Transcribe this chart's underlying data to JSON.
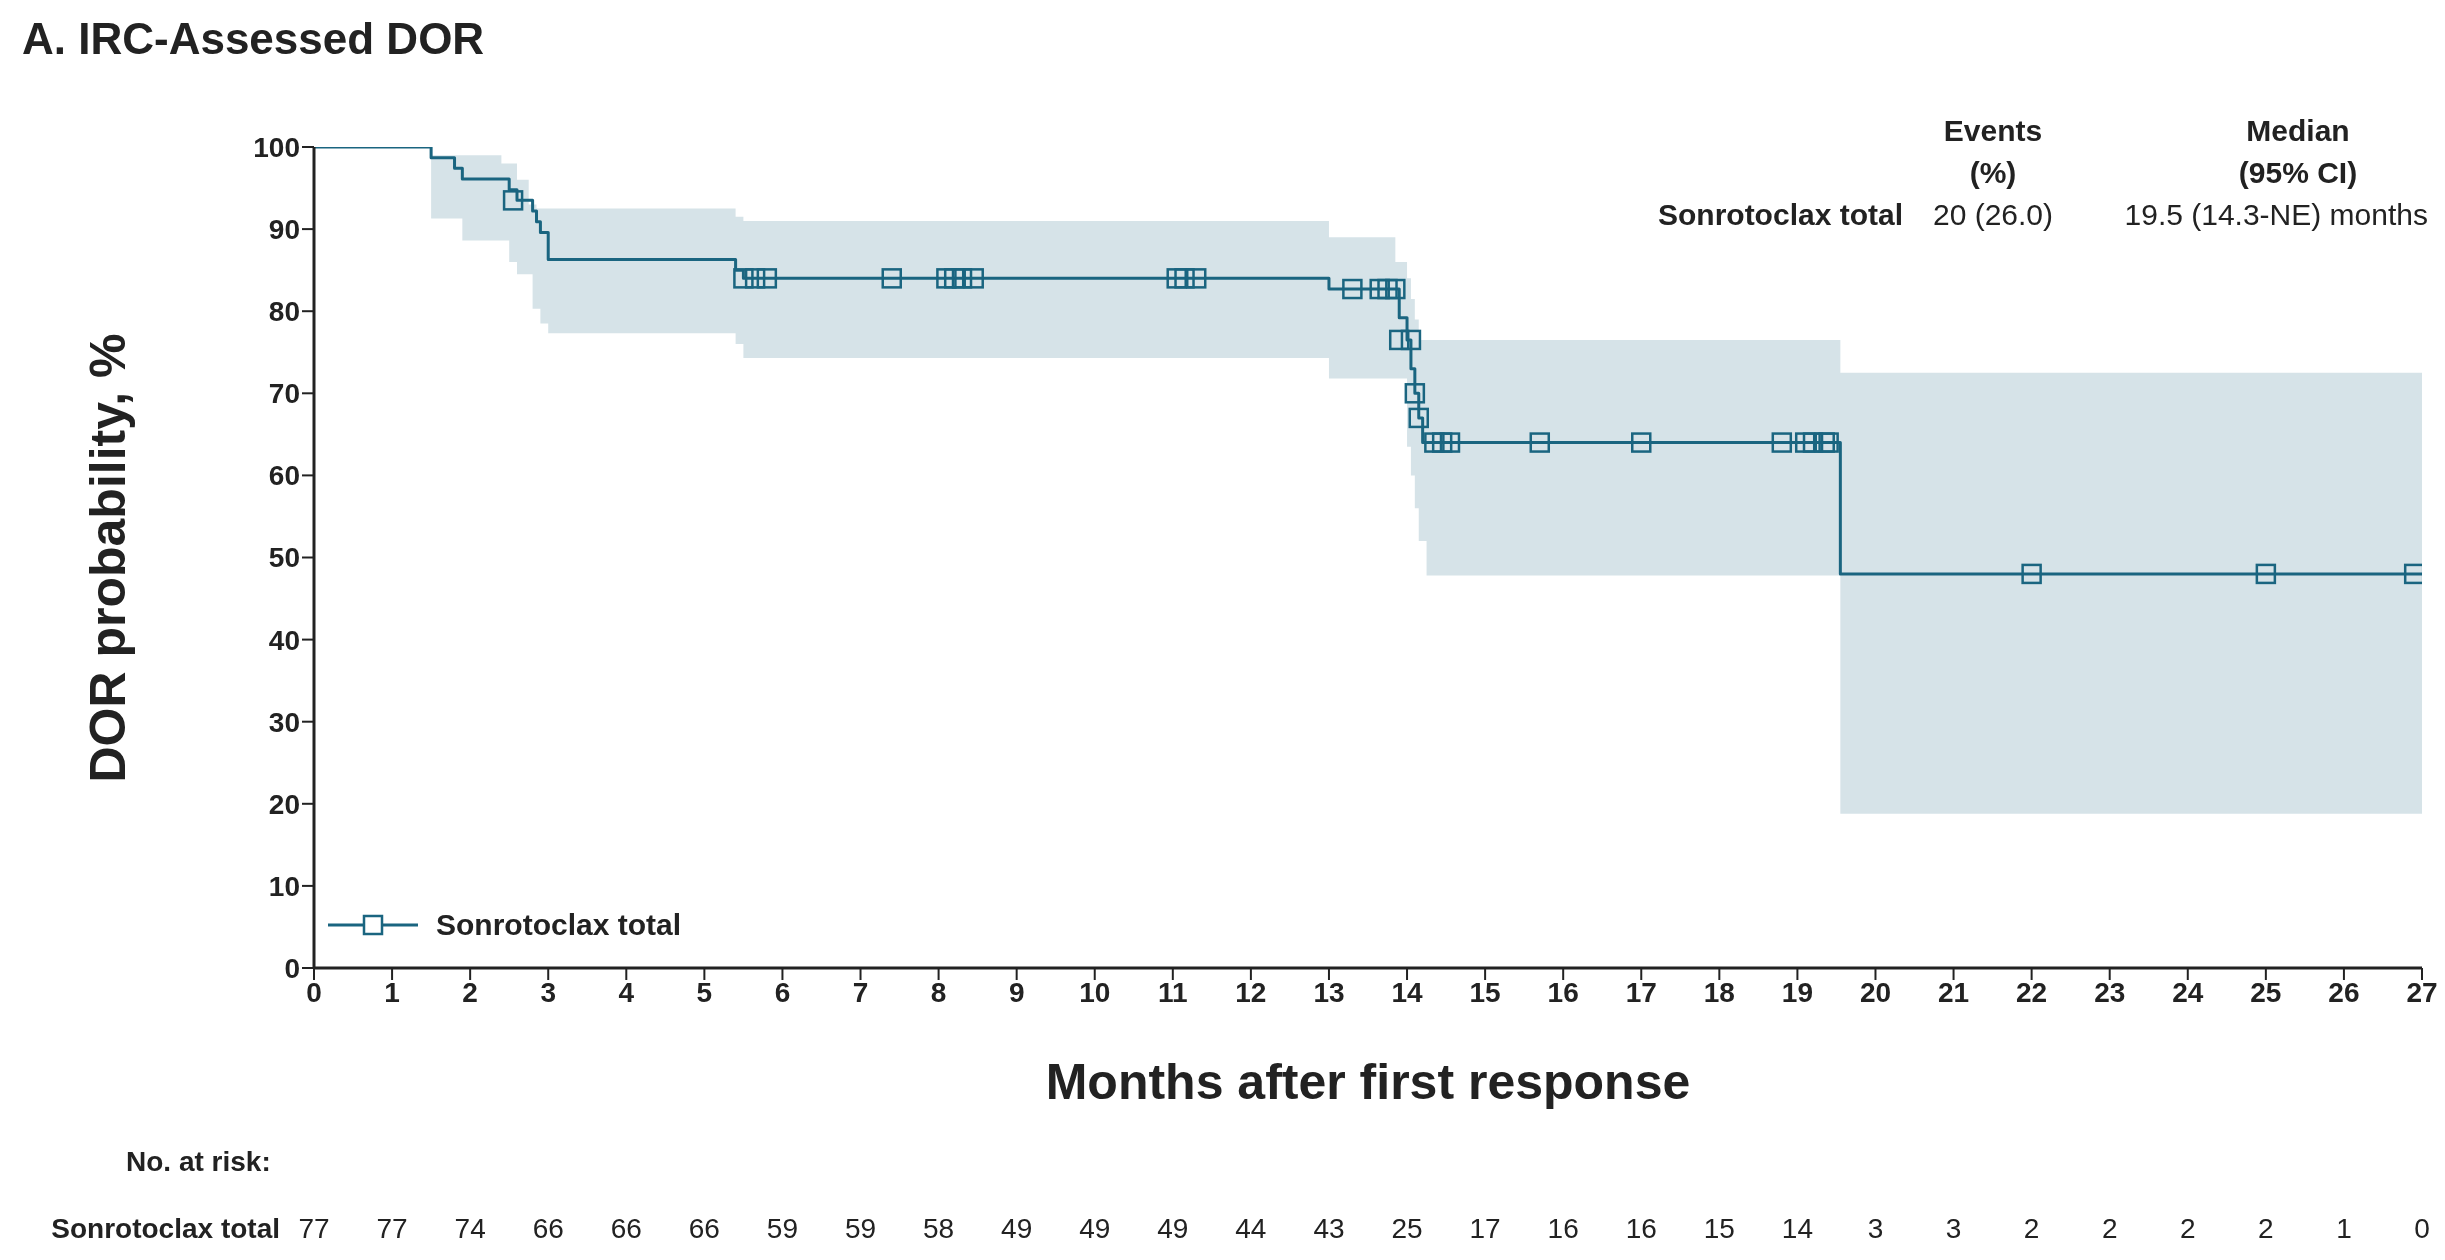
{
  "chart_data": {
    "type": "step",
    "title": "A. IRC-Assessed DOR",
    "xlabel": "Months after first response",
    "ylabel": "DOR probability, %",
    "xlim": [
      0,
      27
    ],
    "xticks": [
      0,
      1,
      2,
      3,
      4,
      5,
      6,
      7,
      8,
      9,
      10,
      11,
      12,
      13,
      14,
      15,
      16,
      17,
      18,
      19,
      20,
      21,
      22,
      23,
      24,
      25,
      26,
      27
    ],
    "ylim": [
      0,
      100
    ],
    "yticks": [
      0,
      10,
      20,
      30,
      40,
      50,
      60,
      70,
      80,
      90,
      100
    ],
    "grid": false,
    "legend": "bottom left",
    "series": [
      {
        "name": "Sonrotoclax total",
        "color": "#1a6580",
        "x": [
          0,
          1.5,
          1.8,
          1.9,
          2.4,
          2.5,
          2.6,
          2.75,
          2.8,
          2.85,
          2.9,
          3.0,
          5.4,
          5.5,
          13.0,
          13.85,
          13.9,
          14.0,
          14.05,
          14.1,
          14.15,
          14.2,
          14.25,
          19.55,
          27
        ],
        "values": [
          100,
          98.7,
          97.4,
          96.1,
          96.1,
          94.8,
          93.5,
          93.5,
          92.2,
          90.9,
          89.6,
          86.3,
          85,
          84,
          82.7,
          82.7,
          79.2,
          76.5,
          73,
          70,
          67,
          64,
          64,
          48,
          48
        ],
        "lower": [
          null,
          91.3,
          91.3,
          88.6,
          88.6,
          86,
          84.5,
          84.5,
          80.3,
          80.3,
          78.5,
          77.3,
          76,
          74.3,
          71.8,
          71.8,
          71.8,
          63.5,
          60,
          56,
          52,
          52,
          47.8,
          18.8,
          18.8
        ],
        "upper": [
          null,
          99,
          99,
          99,
          98,
          98,
          96,
          93,
          93,
          92.5,
          92.5,
          92.5,
          91.5,
          91,
          89,
          86,
          86,
          84,
          81.5,
          79,
          76.5,
          76.5,
          76.5,
          72.5,
          72.5
        ]
      },
      {
        "type": "scatter",
        "color": "#1a6580",
        "marker": "square",
        "x": [
          2.55,
          5.5,
          5.65,
          5.8,
          7.4,
          8.1,
          8.2,
          8.3,
          8.45,
          11.05,
          11.15,
          11.3,
          13.3,
          13.65,
          13.75,
          13.85,
          13.9,
          14.05,
          14.1,
          14.15,
          14.35,
          14.45,
          14.55,
          15.7,
          17,
          18.8,
          19.1,
          19.2,
          19.35,
          19.4,
          22,
          25,
          26.9
        ],
        "values": [
          93.5,
          84,
          84,
          84,
          84,
          84,
          84,
          84,
          84,
          84,
          84,
          84,
          82.7,
          82.7,
          82.7,
          82.7,
          76.5,
          76.5,
          70,
          67,
          64,
          64,
          64,
          64,
          64,
          64,
          64,
          64,
          64,
          64,
          48,
          48,
          48
        ]
      }
    ],
    "annotations": [
      "Events (%)",
      "Median (95% CI)",
      "Sonrotoclax total",
      "20 (26.0)",
      "19.5 (14.3-NE) months",
      "No. at risk:",
      "Sonrotoclax total",
      "77",
      "77",
      "74",
      "66",
      "66",
      "66",
      "59",
      "59",
      "58",
      "49",
      "49",
      "49",
      "44",
      "43",
      "25",
      "17",
      "16",
      "16",
      "15",
      "14",
      "3",
      "3",
      "2",
      "2",
      "2",
      "2",
      "1",
      "0"
    ]
  }
}
